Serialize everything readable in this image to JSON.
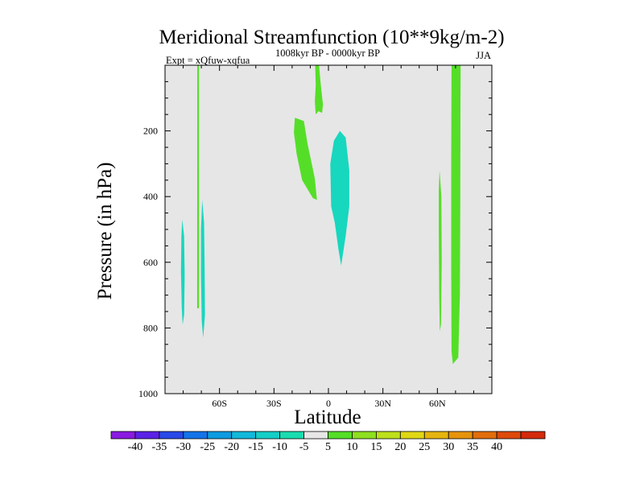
{
  "chart_data": {
    "type": "filled-contour",
    "title": "Meridional Streamfunction (10**9kg/m-2)",
    "subtitle_left": "Expt = xQfuw-xqfua",
    "subtitle_center": "1008kyr BP - 0000kyr BP",
    "subtitle_right": "JJA",
    "xlabel": "Latitude",
    "ylabel": "Pressure (in hPa)",
    "xlim": [
      -90,
      90
    ],
    "ylim": [
      1000,
      0
    ],
    "x_ticks": [
      {
        "value": -60,
        "label": "60S"
      },
      {
        "value": -30,
        "label": "30S"
      },
      {
        "value": 0,
        "label": "0"
      },
      {
        "value": 30,
        "label": "30N"
      },
      {
        "value": 60,
        "label": "60N"
      }
    ],
    "y_ticks": [
      {
        "value": 200,
        "label": "200"
      },
      {
        "value": 400,
        "label": "400"
      },
      {
        "value": 600,
        "label": "600"
      },
      {
        "value": 800,
        "label": "800"
      },
      {
        "value": 1000,
        "label": "1000"
      }
    ],
    "background_value_range": "-5 to 5",
    "background_color": "#e6e6e6",
    "contour_regions": [
      {
        "name": "sh-polar-negative-cell",
        "value_range": "-10 to -5",
        "color": "#17d7be",
        "points": [
          [
            -80.5,
            470
          ],
          [
            -79.5,
            520
          ],
          [
            -79.2,
            640
          ],
          [
            -79.5,
            760
          ],
          [
            -80.3,
            790
          ],
          [
            -80.8,
            740
          ],
          [
            -81.2,
            630
          ],
          [
            -81.0,
            520
          ]
        ]
      },
      {
        "name": "sh-highlat-negative-cell",
        "value_range": "-10 to -5",
        "color": "#17d7be",
        "points": [
          [
            -69.5,
            410
          ],
          [
            -68.5,
            480
          ],
          [
            -68.2,
            620
          ],
          [
            -68.0,
            760
          ],
          [
            -69.0,
            830
          ],
          [
            -69.8,
            780
          ],
          [
            -70.2,
            640
          ],
          [
            -70.2,
            500
          ]
        ]
      },
      {
        "name": "sh-positive-strip",
        "value_range": "5 to 10",
        "color": "#55de28",
        "points": [
          [
            -72.2,
            0
          ],
          [
            -71.3,
            0
          ],
          [
            -71.3,
            740
          ],
          [
            -72.3,
            740
          ]
        ]
      },
      {
        "name": "tropical-upper-positive-cell",
        "value_range": "5 to 10",
        "color": "#55de28",
        "points": [
          [
            -18.5,
            160
          ],
          [
            -13.5,
            170
          ],
          [
            -11.5,
            240
          ],
          [
            -7.5,
            345
          ],
          [
            -6.5,
            400
          ],
          [
            -6.3,
            410
          ],
          [
            -8.5,
            405
          ],
          [
            -14.5,
            350
          ],
          [
            -17.5,
            270
          ],
          [
            -19.0,
            205
          ]
        ]
      },
      {
        "name": "tropical-uppermost-positive-cell",
        "value_range": "5 to 10",
        "color": "#55de28",
        "points": [
          [
            -7.3,
            0
          ],
          [
            -5.2,
            0
          ],
          [
            -4.2,
            60
          ],
          [
            -3.0,
            120
          ],
          [
            -3.5,
            145
          ],
          [
            -5.5,
            140
          ],
          [
            -7.0,
            150
          ],
          [
            -7.5,
            110
          ],
          [
            -7.0,
            60
          ]
        ]
      },
      {
        "name": "tropical-negative-cell",
        "value_range": "-10 to -5",
        "color": "#17d7be",
        "points": [
          [
            6.3,
            200
          ],
          [
            9.5,
            220
          ],
          [
            11.5,
            320
          ],
          [
            11.5,
            430
          ],
          [
            9.5,
            520
          ],
          [
            7.0,
            610
          ],
          [
            5.5,
            560
          ],
          [
            3.5,
            480
          ],
          [
            1.5,
            430
          ],
          [
            1.0,
            300
          ],
          [
            3.0,
            230
          ]
        ]
      },
      {
        "name": "nh-highlat-positive-strip",
        "value_range": "5 to 10",
        "color": "#55de28",
        "points": [
          [
            61.2,
            320
          ],
          [
            62.2,
            400
          ],
          [
            62.4,
            600
          ],
          [
            62.0,
            790
          ],
          [
            61.3,
            810
          ],
          [
            61.0,
            700
          ],
          [
            60.8,
            500
          ],
          [
            60.8,
            380
          ]
        ]
      },
      {
        "name": "nh-polar-positive-band",
        "value_range": "5 to 10",
        "color": "#55de28",
        "points": [
          [
            67.8,
            0
          ],
          [
            72.8,
            0
          ],
          [
            72.7,
            120
          ],
          [
            72.6,
            400
          ],
          [
            72.4,
            700
          ],
          [
            71.5,
            890
          ],
          [
            70.0,
            900
          ],
          [
            68.5,
            910
          ],
          [
            67.8,
            870
          ],
          [
            67.6,
            600
          ],
          [
            67.6,
            300
          ]
        ]
      }
    ],
    "colorbar": {
      "boxes": [
        "#8a1ae0",
        "#5a22e6",
        "#2848e8",
        "#1473e8",
        "#0d9be0",
        "#12b8da",
        "#15cdc7",
        "#18dcb0",
        "#e6e6e6",
        "#55de28",
        "#8edf20",
        "#bddf1c",
        "#e0d714",
        "#e6b40e",
        "#e6930c",
        "#e26d0c",
        "#dd4a0c",
        "#d42a0c"
      ],
      "labels": [
        "-40",
        "-35",
        "-30",
        "-25",
        "-20",
        "-15",
        "-10",
        "-5",
        "5",
        "10",
        "15",
        "20",
        "25",
        "30",
        "35",
        "40"
      ]
    }
  }
}
